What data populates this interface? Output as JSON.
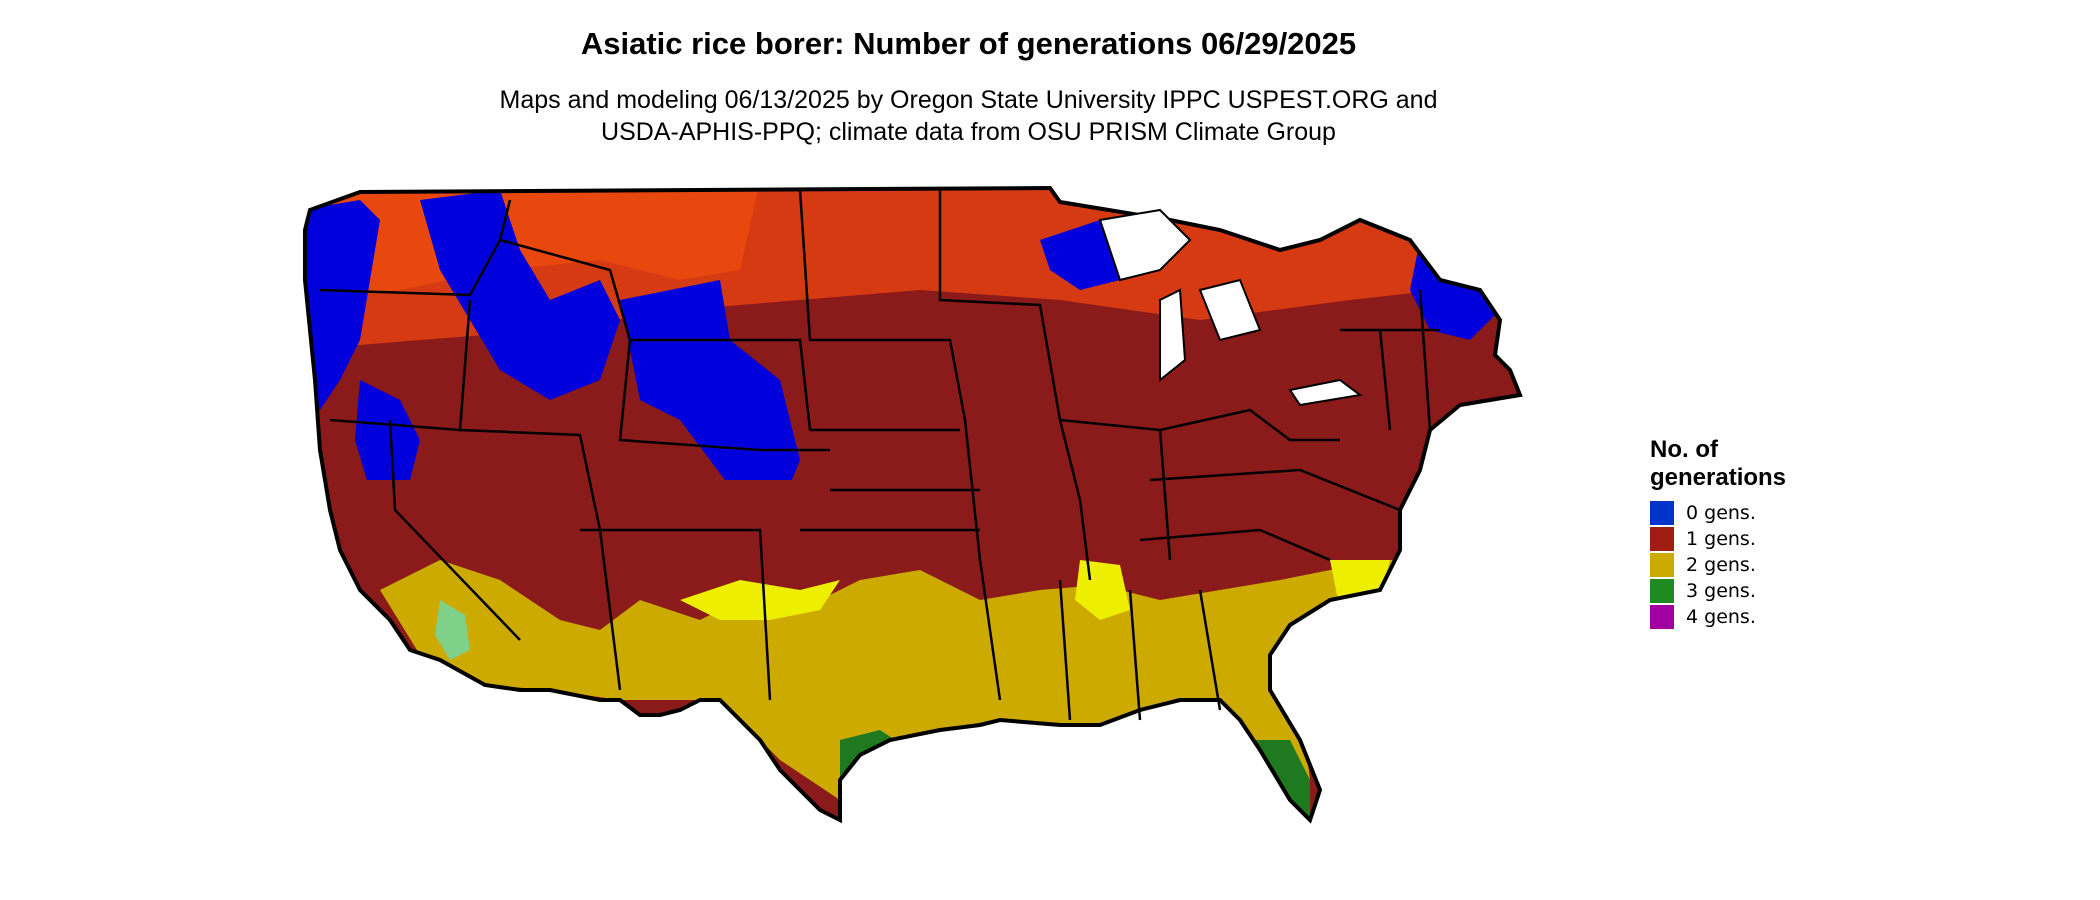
{
  "title": "Asiatic rice borer: Number of generations 06/29/2025",
  "subtitle_line1": "Maps and modeling 06/13/2025 by Oregon State University IPPC USPEST.ORG and",
  "subtitle_line2": "USDA-APHIS-PPQ; climate data from OSU PRISM Climate Group",
  "legend": {
    "title": "No. of\ngenerations",
    "items": [
      {
        "label": "0 gens.",
        "color": "#0033cc"
      },
      {
        "label": "1 gens.",
        "color": "#a01d13"
      },
      {
        "label": "2 gens.",
        "color": "#ccaa00"
      },
      {
        "label": "3 gens.",
        "color": "#1f8a1f"
      },
      {
        "label": "4 gens.",
        "color": "#a000a0"
      }
    ]
  },
  "map": {
    "region": "contiguous-us",
    "colors": {
      "zero": "#0000dd",
      "one": "#8b1a1a",
      "one_light": "#d63a12",
      "one_orange": "#e8480e",
      "two": "#ccaa00",
      "two_light": "#eeee00",
      "three": "#1f7a1f",
      "three_light": "#7fd18a",
      "border": "#000000"
    }
  }
}
